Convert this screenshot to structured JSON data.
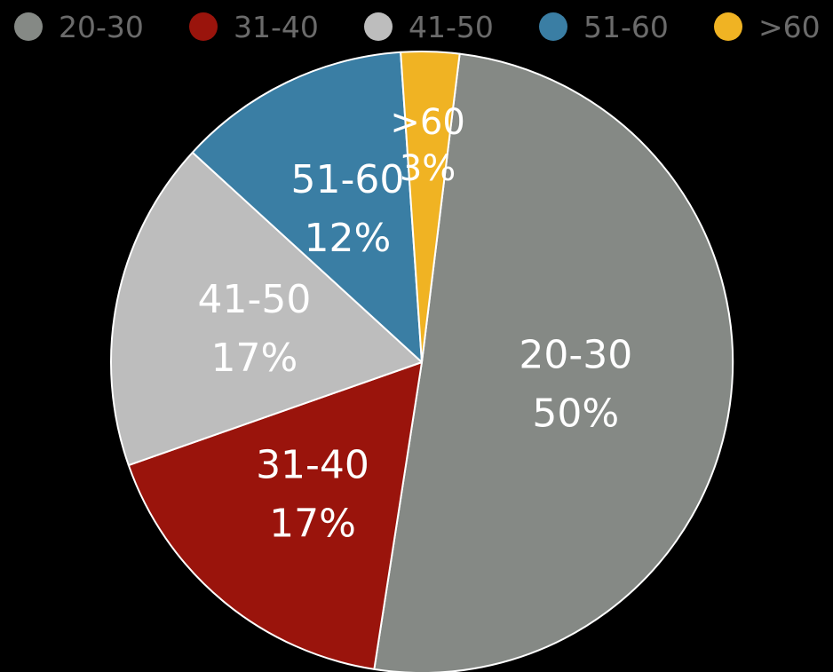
{
  "chart_data": {
    "type": "pie",
    "slices": [
      {
        "label": "20-30",
        "value": 50,
        "value_label": "50%",
        "color": "#858985"
      },
      {
        "label": "31-40",
        "value": 17,
        "value_label": "17%",
        "color": "#9a140c"
      },
      {
        "label": "41-50",
        "value": 17,
        "value_label": "17%",
        "color": "#bdbdbd"
      },
      {
        "label": "51-60",
        "value": 12,
        "value_label": "12%",
        "color": "#3a7ea4"
      },
      {
        "label": ">60",
        "value": 3,
        "value_label": "3%",
        "color": "#f0b323"
      }
    ],
    "legend": {
      "placement": "top",
      "entries": [
        "20-30",
        "31-40",
        "41-50",
        "51-60",
        ">60"
      ]
    },
    "background": "#000000",
    "label_color": "#ffffff",
    "legend_text_color": "#6b6b6b",
    "slice_border_color": "#ffffff"
  }
}
